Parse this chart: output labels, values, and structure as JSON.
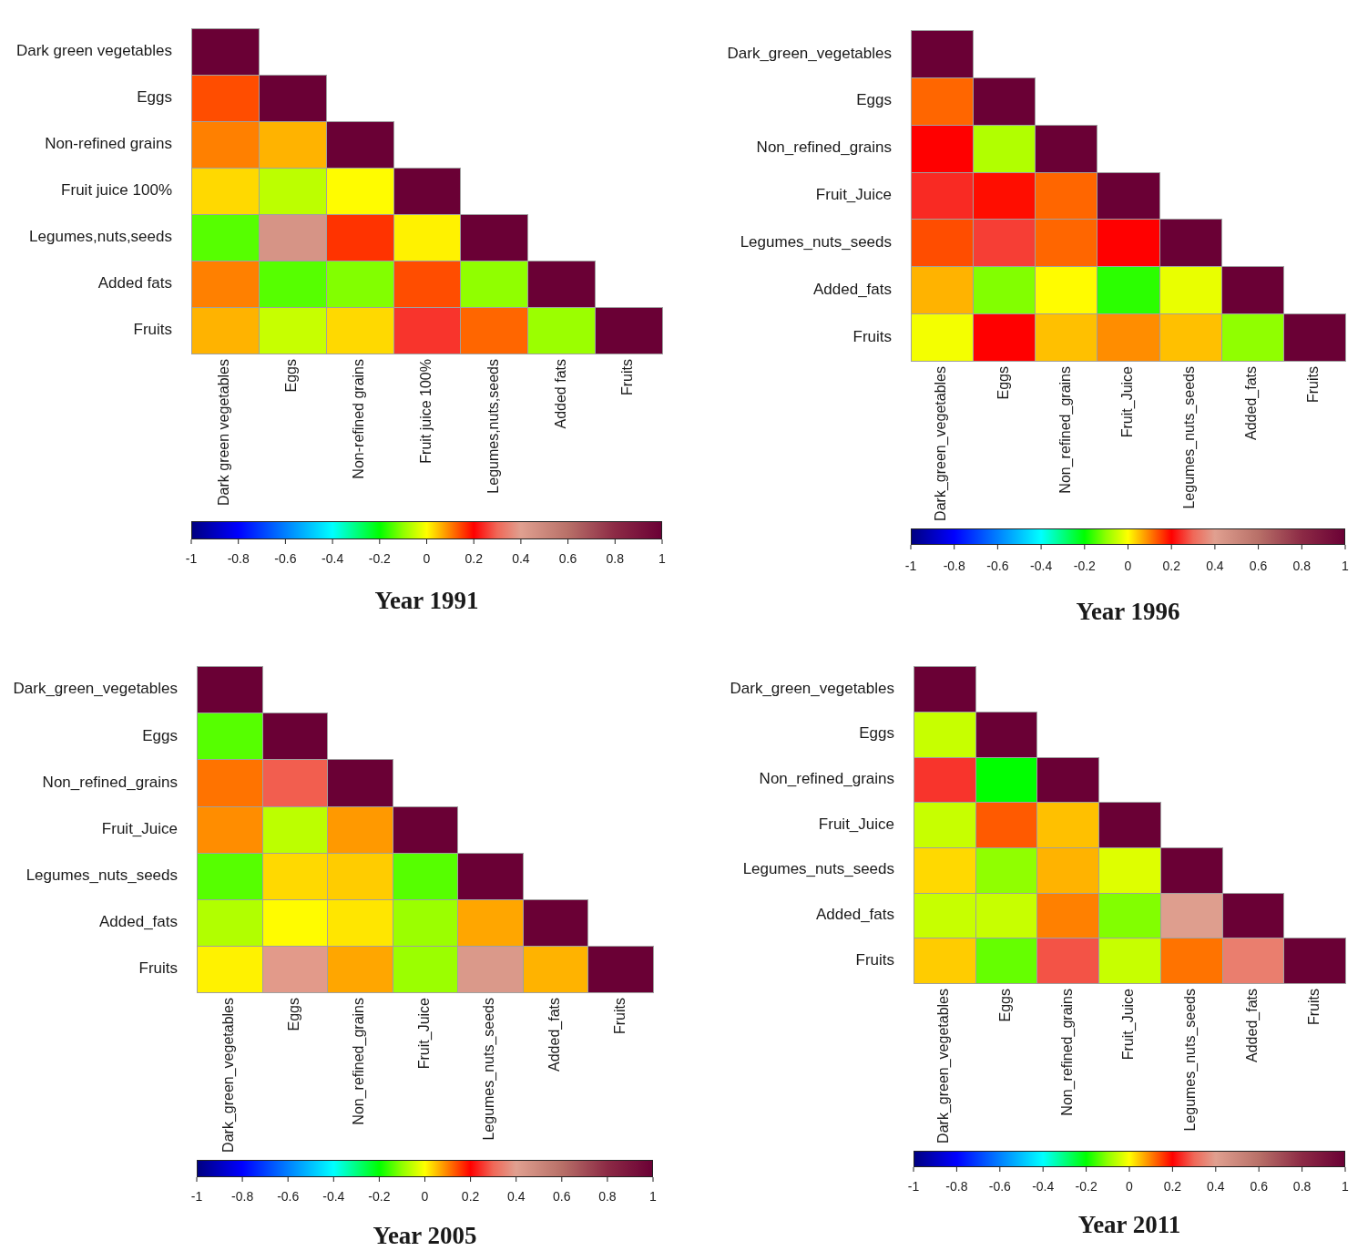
{
  "chart_data": [
    {
      "type": "heatmap",
      "title": "Year 1991",
      "categories": [
        "Dark green vegetables",
        "Eggs",
        "Non-refined grains",
        "Fruit juice 100%",
        "Legumes,nuts,seeds",
        "Added fats",
        "Fruits"
      ],
      "y_categories": [
        "Dark green vegetables",
        "Eggs",
        "Non-refined grains",
        "Fruit juice 100%",
        "Legumes,nuts,seeds",
        "Added fats",
        "Fruits"
      ],
      "cells": [
        [
          1,
          null,
          null,
          null,
          null,
          null,
          null
        ],
        [
          0.14,
          1,
          null,
          null,
          null,
          null,
          null
        ],
        [
          0.1,
          0.06,
          1,
          null,
          null,
          null,
          null
        ],
        [
          0.03,
          -0.06,
          0.002,
          1,
          null,
          null,
          null
        ],
        [
          -0.14,
          0.45,
          0.16,
          0.01,
          1,
          null,
          null
        ],
        [
          0.1,
          -0.14,
          -0.11,
          0.14,
          -0.1,
          1,
          null
        ],
        [
          0.06,
          -0.05,
          0.03,
          0.25,
          0.12,
          -0.09,
          1
        ]
      ],
      "clim": [
        -1,
        1
      ],
      "cticks": [
        -1,
        -0.8,
        -0.6,
        -0.4,
        -0.2,
        0,
        0.2,
        0.4,
        0.6,
        0.8,
        1
      ]
    },
    {
      "type": "heatmap",
      "title": "Year 1996",
      "categories": [
        "Dark_green_vegetables",
        "Eggs",
        "Non_refined_grains",
        "Fruit_Juice",
        "Legumes_nuts_seeds",
        "Added_fats",
        "Fruits"
      ],
      "y_categories": [
        "Dark_green_vegetables",
        "Eggs",
        "Non_refined_grains",
        "Fruit_Juice",
        "Legumes_nuts_seeds",
        "Added_fats",
        "Fruits"
      ],
      "cells": [
        [
          1,
          null,
          null,
          null,
          null,
          null,
          null
        ],
        [
          0.12,
          1,
          null,
          null,
          null,
          null,
          null
        ],
        [
          0.2,
          -0.07,
          1,
          null,
          null,
          null,
          null
        ],
        [
          0.24,
          0.19,
          0.12,
          1,
          null,
          null,
          null
        ],
        [
          0.14,
          0.26,
          0.12,
          0.2,
          1,
          null,
          null
        ],
        [
          0.06,
          -0.11,
          0.002,
          -0.17,
          -0.02,
          1,
          null
        ],
        [
          -0.01,
          0.2,
          0.05,
          0.09,
          0.05,
          -0.1,
          1
        ]
      ],
      "clim": [
        -1,
        1
      ],
      "cticks": [
        -1,
        -0.8,
        -0.6,
        -0.4,
        -0.2,
        0,
        0.2,
        0.4,
        0.6,
        0.8,
        1
      ]
    },
    {
      "type": "heatmap",
      "title": "Year 2005",
      "categories": [
        "Dark_green_vegetables",
        "Eggs",
        "Non_refined_grains",
        "Fruit_Juice",
        "Legumes_nuts_seeds",
        "Added_fats",
        "Fruits"
      ],
      "y_categories": [
        "Dark_green_vegetables",
        "Eggs",
        "Non_refined_grains",
        "Fruit_Juice",
        "Legumes_nuts_seeds",
        "Added_fats",
        "Fruits"
      ],
      "cells": [
        [
          1,
          null,
          null,
          null,
          null,
          null,
          null
        ],
        [
          -0.14,
          1,
          null,
          null,
          null,
          null,
          null
        ],
        [
          0.11,
          0.29,
          1,
          null,
          null,
          null,
          null
        ],
        [
          0.09,
          -0.06,
          0.08,
          1,
          null,
          null,
          null
        ],
        [
          -0.14,
          0.03,
          0.04,
          -0.14,
          1,
          null,
          null
        ],
        [
          -0.07,
          0.002,
          0.02,
          -0.09,
          0.07,
          1,
          null
        ],
        [
          0.01,
          0.39,
          0.07,
          -0.09,
          0.43,
          0.06,
          1
        ]
      ],
      "clim": [
        -1,
        1
      ],
      "cticks": [
        -1,
        -0.8,
        -0.6,
        -0.4,
        -0.2,
        0,
        0.2,
        0.4,
        0.6,
        0.8,
        1
      ]
    },
    {
      "type": "heatmap",
      "title": "Year 2011",
      "categories": [
        "Dark_green_vegetables",
        "Eggs",
        "Non_refined_grains",
        "Fruit_Juice",
        "Legumes_nuts_seeds",
        "Added_fats",
        "Fruits"
      ],
      "y_categories": [
        "Dark_green_vegetables",
        "Eggs",
        "Non_refined_grains",
        "Fruit_Juice",
        "Legumes_nuts_seeds",
        "Added_fats",
        "Fruits"
      ],
      "cells": [
        [
          1,
          null,
          null,
          null,
          null,
          null,
          null
        ],
        [
          -0.05,
          1,
          null,
          null,
          null,
          null,
          null
        ],
        [
          0.25,
          -0.2,
          1,
          null,
          null,
          null,
          null
        ],
        [
          -0.05,
          0.13,
          0.05,
          1,
          null,
          null,
          null
        ],
        [
          0.03,
          -0.1,
          0.06,
          -0.03,
          1,
          null,
          null
        ],
        [
          -0.05,
          -0.05,
          0.1,
          -0.11,
          0.41,
          1,
          null
        ],
        [
          0.04,
          -0.13,
          0.28,
          -0.05,
          0.11,
          0.34,
          1
        ]
      ],
      "clim": [
        -1,
        1
      ],
      "cticks": [
        -1,
        -0.8,
        -0.6,
        -0.4,
        -0.2,
        0,
        0.2,
        0.4,
        0.6,
        0.8,
        1
      ]
    }
  ]
}
